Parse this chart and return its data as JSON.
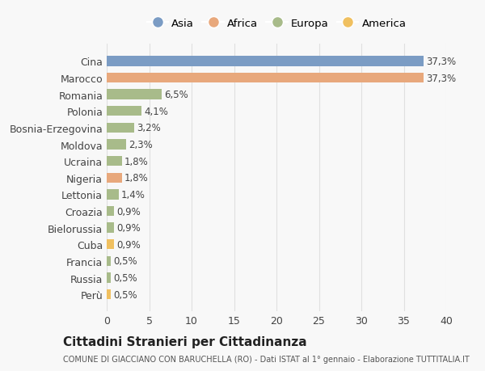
{
  "categories": [
    "Perù",
    "Russia",
    "Francia",
    "Cuba",
    "Bielorussia",
    "Croazia",
    "Lettonia",
    "Nigeria",
    "Ucraina",
    "Moldova",
    "Bosnia-Erzegovina",
    "Polonia",
    "Romania",
    "Marocco",
    "Cina"
  ],
  "values": [
    0.5,
    0.5,
    0.5,
    0.9,
    0.9,
    0.9,
    1.4,
    1.8,
    1.8,
    2.3,
    3.2,
    4.1,
    6.5,
    37.3,
    37.3
  ],
  "labels": [
    "0,5%",
    "0,5%",
    "0,5%",
    "0,9%",
    "0,9%",
    "0,9%",
    "1,4%",
    "1,8%",
    "1,8%",
    "2,3%",
    "3,2%",
    "4,1%",
    "6,5%",
    "37,3%",
    "37,3%"
  ],
  "colors": [
    "#f0c060",
    "#a8bb8a",
    "#a8bb8a",
    "#f0c060",
    "#a8bb8a",
    "#a8bb8a",
    "#a8bb8a",
    "#e8a87c",
    "#a8bb8a",
    "#a8bb8a",
    "#a8bb8a",
    "#a8bb8a",
    "#a8bb8a",
    "#e8a87c",
    "#7b9cc4"
  ],
  "legend_labels": [
    "Asia",
    "Africa",
    "Europa",
    "America"
  ],
  "legend_colors": [
    "#7b9cc4",
    "#e8a87c",
    "#a8bb8a",
    "#f0c060"
  ],
  "title": "Cittadini Stranieri per Cittadinanza",
  "subtitle": "COMUNE DI GIACCIANO CON BARUCHELLA (RO) - Dati ISTAT al 1° gennaio - Elaborazione TUTTITALIA.IT",
  "xlim": [
    0,
    40
  ],
  "xticks": [
    0,
    5,
    10,
    15,
    20,
    25,
    30,
    35,
    40
  ],
  "bg_color": "#f8f8f8",
  "grid_color": "#e0e0e0"
}
